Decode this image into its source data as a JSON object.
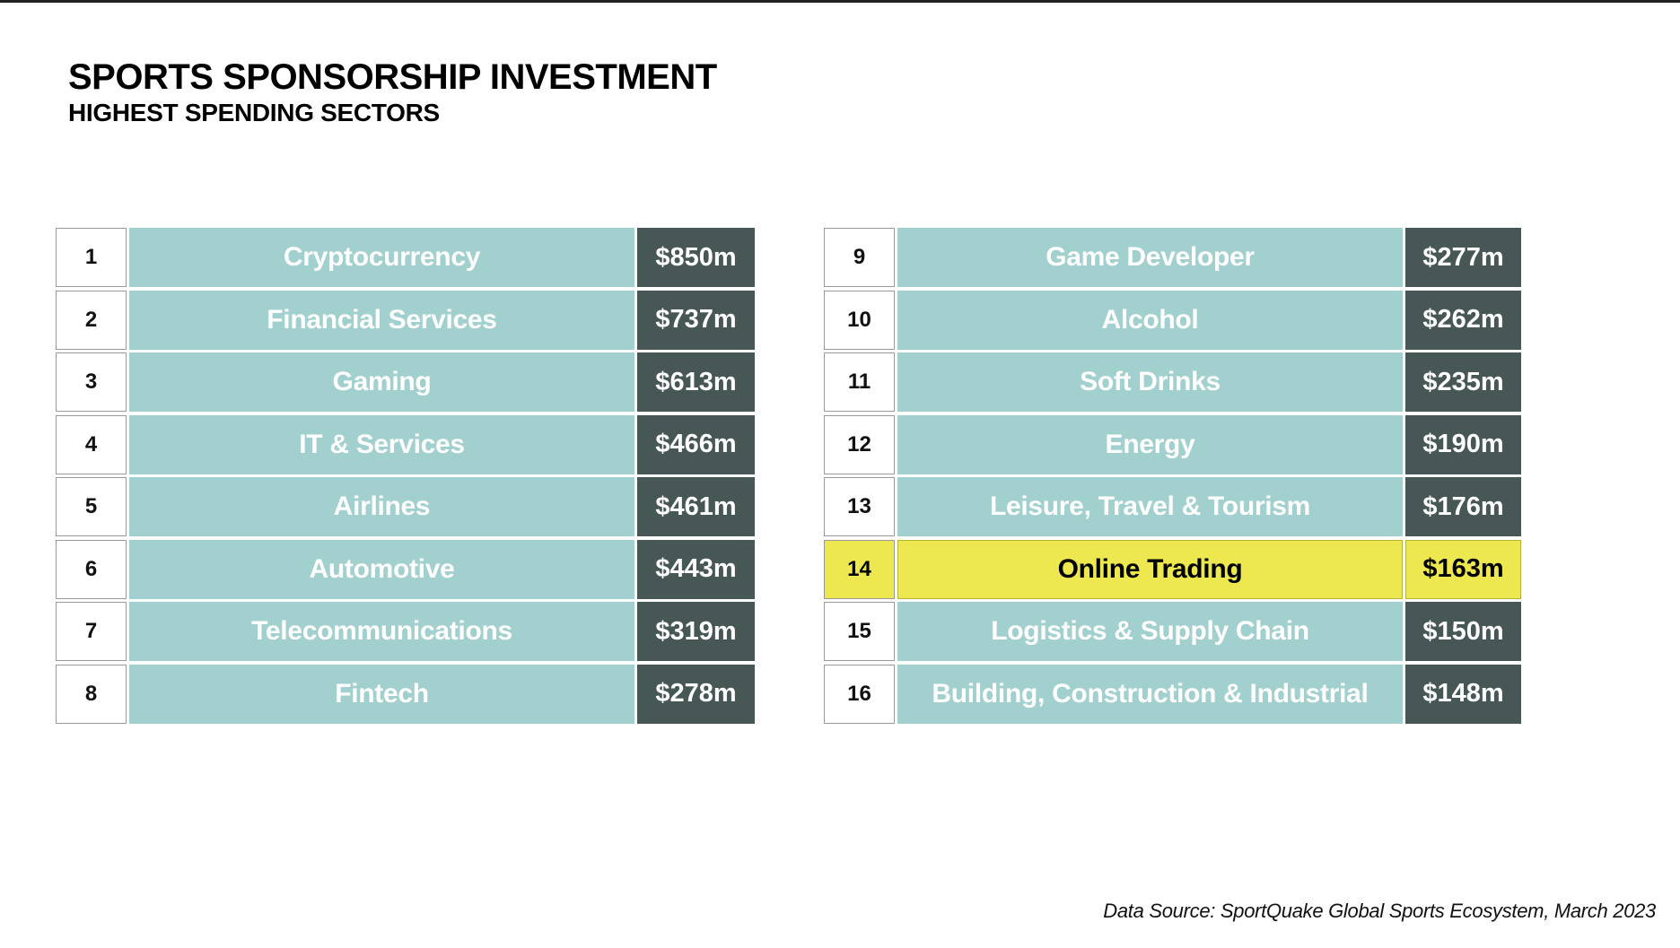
{
  "title": "SPORTS SPONSORSHIP INVESTMENT",
  "subtitle": "HIGHEST SPENDING SECTORS",
  "colors": {
    "sector_cell": "#a1d0ce",
    "value_cell": "#465756",
    "highlight": "#ede84f"
  },
  "left_table": [
    {
      "rank": "1",
      "sector": "Cryptocurrency",
      "value": "$850m"
    },
    {
      "rank": "2",
      "sector": "Financial Services",
      "value": "$737m"
    },
    {
      "rank": "3",
      "sector": "Gaming",
      "value": "$613m"
    },
    {
      "rank": "4",
      "sector": "IT & Services",
      "value": "$466m"
    },
    {
      "rank": "5",
      "sector": "Airlines",
      "value": "$461m"
    },
    {
      "rank": "6",
      "sector": "Automotive",
      "value": "$443m"
    },
    {
      "rank": "7",
      "sector": "Telecommunications",
      "value": "$319m"
    },
    {
      "rank": "8",
      "sector": "Fintech",
      "value": "$278m"
    }
  ],
  "right_table": [
    {
      "rank": "9",
      "sector": "Game Developer",
      "value": "$277m"
    },
    {
      "rank": "10",
      "sector": "Alcohol",
      "value": "$262m"
    },
    {
      "rank": "11",
      "sector": "Soft Drinks",
      "value": "$235m"
    },
    {
      "rank": "12",
      "sector": "Energy",
      "value": "$190m"
    },
    {
      "rank": "13",
      "sector": "Leisure, Travel & Tourism",
      "value": "$176m"
    },
    {
      "rank": "14",
      "sector": "Online Trading",
      "value": "$163m",
      "highlighted": true
    },
    {
      "rank": "15",
      "sector": "Logistics & Supply Chain",
      "value": "$150m"
    },
    {
      "rank": "16",
      "sector": "Building, Construction & Industrial",
      "value": "$148m"
    }
  ],
  "source": "Data Source: SportQuake Global Sports Ecosystem, March 2023"
}
